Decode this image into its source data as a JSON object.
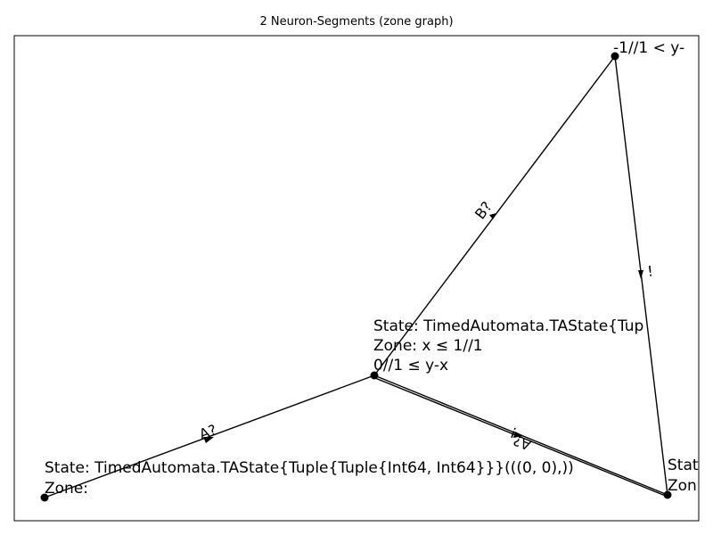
{
  "title": "2 Neuron-Segments (zone graph)",
  "nodes": {
    "center": {
      "lines": [
        "State: TimedAutomata.TAState{Tup",
        "Zone: x ≤ 1//1",
        "0//1 ≤ y-x"
      ]
    },
    "top_right": {
      "lines": [
        "-1//1 < y-"
      ]
    },
    "bottom_left": {
      "lines": [
        "State: TimedAutomata.TAState{Tuple{Tuple{Int64, Int64}}}(((0, 0),))",
        "Zone:"
      ]
    },
    "bottom_right": {
      "lines": [
        "Stat",
        "Zon"
      ]
    }
  },
  "edges": {
    "bottom_left_to_center": "A?",
    "center_to_top_right": "B?",
    "top_right_to_bottom_right": "!",
    "bottom_right_to_center_back": "A?",
    "center_to_bottom_right": "!"
  }
}
